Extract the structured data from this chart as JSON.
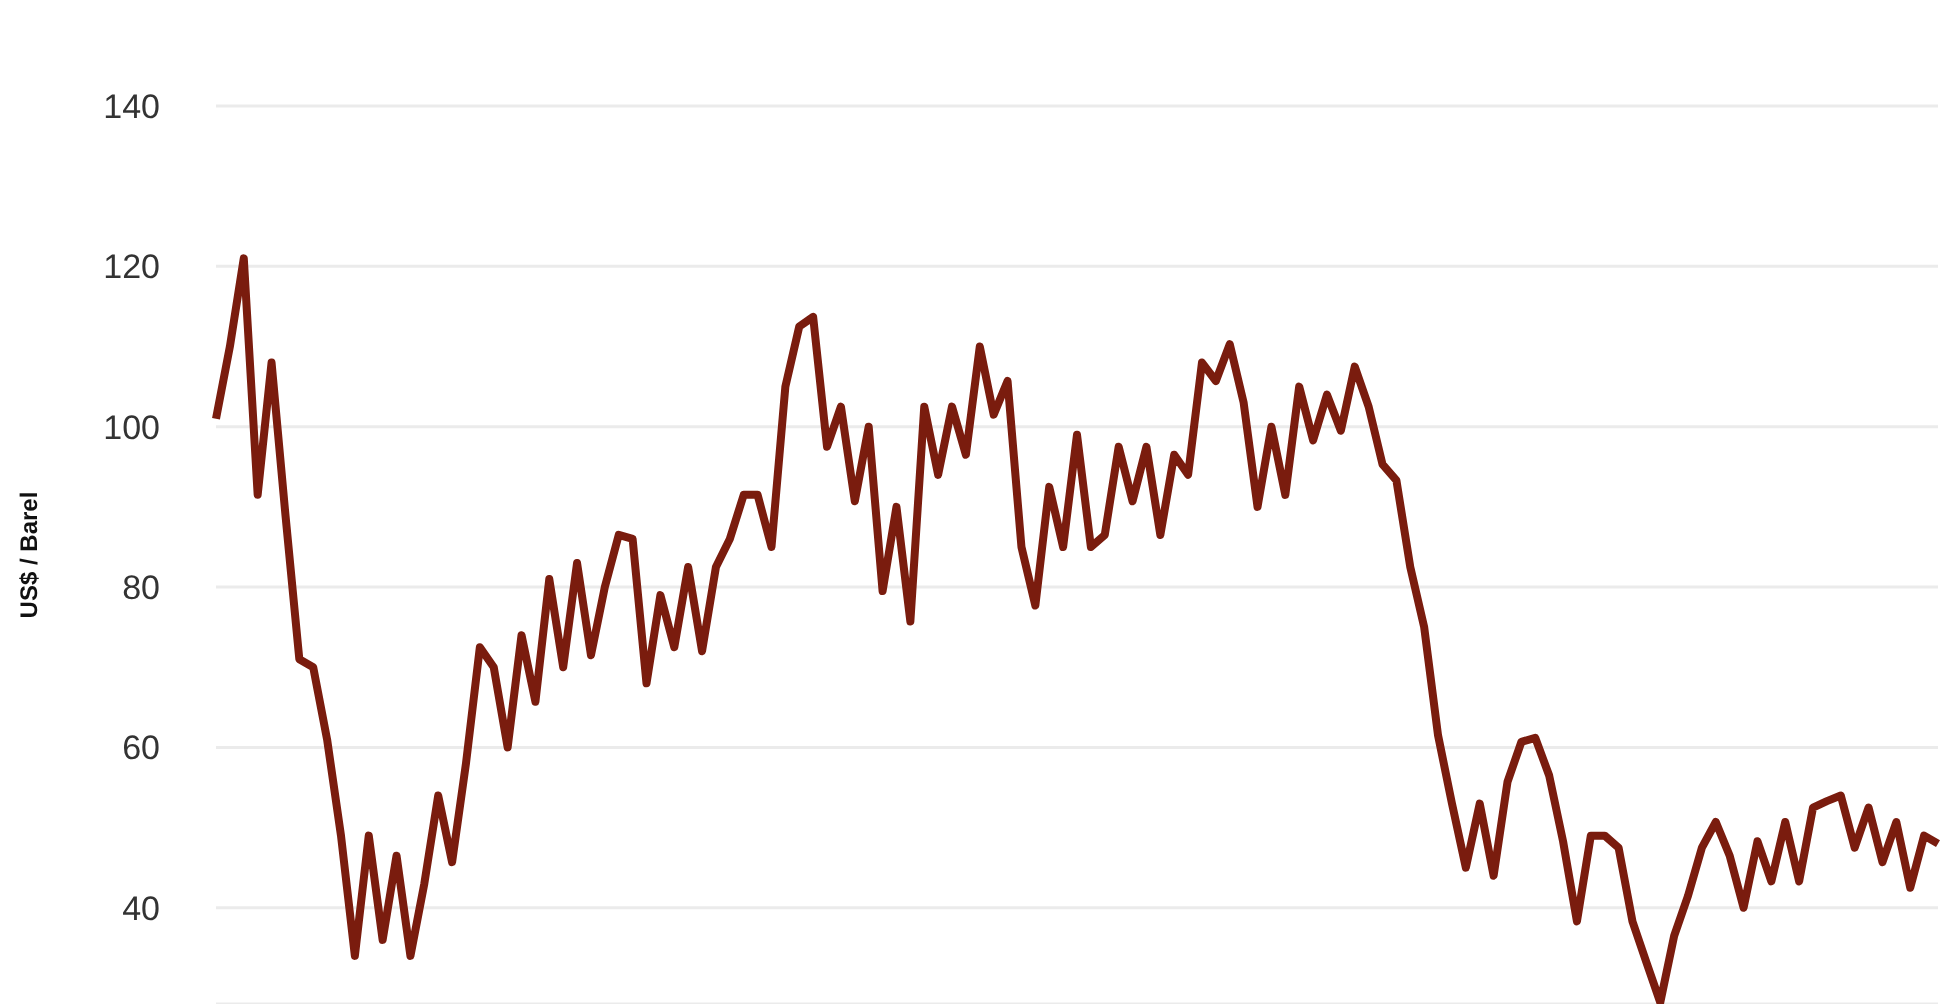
{
  "chart_data": {
    "type": "line",
    "ylabel": "US$ / Barel",
    "ylim": [
      28,
      140
    ],
    "yticks": [
      40,
      60,
      80,
      100,
      120,
      140
    ],
    "grid": "y",
    "legend": false,
    "tick_labels": "y",
    "marker": "none",
    "line_style": "solid",
    "categories": [
      null,
      null,
      null,
      null,
      null,
      null,
      null,
      null,
      null,
      null,
      null,
      null,
      null,
      null,
      null,
      null,
      null,
      null,
      null,
      null,
      null,
      null,
      null,
      null,
      null,
      null,
      null,
      null,
      null,
      null,
      null,
      null,
      null,
      null,
      null,
      null,
      null,
      null,
      null,
      null,
      null,
      null,
      null,
      null,
      null,
      null,
      null,
      null,
      null,
      null,
      null,
      null,
      null,
      null,
      null,
      null,
      null,
      null,
      null,
      null,
      null,
      null,
      null,
      null,
      null,
      null,
      null,
      null,
      null,
      null,
      null,
      null,
      null,
      null,
      null,
      null,
      null,
      null,
      null,
      null,
      null,
      null,
      null,
      null,
      null,
      null,
      null,
      null,
      null,
      null,
      null,
      null,
      null,
      null,
      null,
      null,
      null,
      null,
      null,
      null,
      null,
      null,
      null,
      null,
      null,
      null,
      null,
      null,
      null,
      null,
      null,
      null,
      null,
      null,
      null,
      null,
      null,
      null,
      null,
      null,
      null,
      null,
      null,
      null,
      null
    ],
    "series": [
      {
        "color": "#7a1c0e",
        "values": [
          101,
          110,
          121,
          91.5,
          108,
          89,
          71,
          70,
          61,
          49,
          34,
          49,
          36,
          46.5,
          34,
          43,
          54,
          45.7,
          58,
          72.5,
          70,
          60,
          74,
          65.7,
          81,
          70,
          83,
          71.5,
          80,
          86.5,
          86,
          68,
          79,
          72.5,
          82.5,
          72,
          82.5,
          86,
          91.5,
          91.5,
          85,
          105,
          112.5,
          113.7,
          97.5,
          102.5,
          90.7,
          100,
          79.5,
          90,
          75.7,
          102.5,
          94,
          102.5,
          96.5,
          110,
          101.5,
          105.7,
          85,
          77.7,
          92.5,
          85,
          99,
          85,
          86.5,
          97.5,
          90.7,
          97.5,
          86.5,
          96.5,
          94,
          108,
          105.7,
          110.3,
          103,
          90,
          100,
          91.5,
          105,
          98.3,
          104,
          99.5,
          107.5,
          102.5,
          95.3,
          93.3,
          82.5,
          75,
          61.5,
          53,
          45,
          53,
          44,
          55.7,
          60.7,
          61.2,
          56.5,
          48.3,
          38.3,
          49,
          49,
          47.5,
          38.3,
          33.2,
          28.2,
          36.5,
          41.5,
          47.5,
          50.7,
          46.5,
          40,
          48.3,
          43.3,
          50.7,
          43.3,
          52.5,
          53.3,
          54,
          47.5,
          52.5,
          45.7,
          50.7,
          42.5,
          49,
          48
        ]
      }
    ]
  }
}
